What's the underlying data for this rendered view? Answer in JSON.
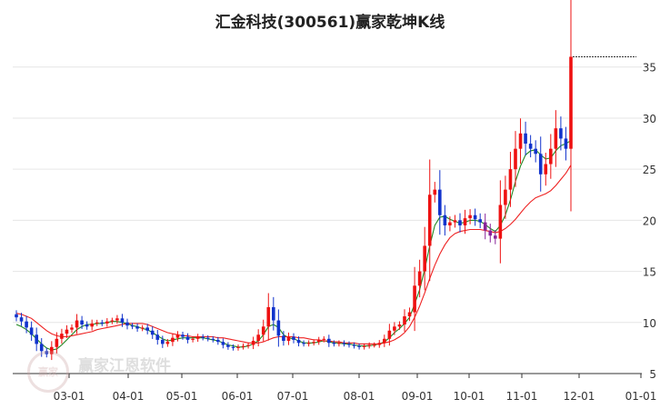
{
  "chart_data": {
    "type": "candlestick",
    "title": "汇金科技(300561)赢家乾坤K线",
    "ylim": [
      5,
      38
    ],
    "y_ticks": [
      35,
      30,
      25,
      20,
      15,
      10,
      5
    ],
    "x_ticks": [
      "03-01",
      "04-01",
      "05-01",
      "06-01",
      "07-01",
      "08-01",
      "09-01",
      "10-01",
      "11-01",
      "12-01",
      "01-01"
    ],
    "last_price_line": 36.0,
    "colors": {
      "up": "#ee1111",
      "down": "#1133cc",
      "special": "#882299",
      "short_ma": "#228822",
      "long_ma": "#ee2222",
      "grid": "#e6e6e6",
      "axis_text": "#333333"
    },
    "series": [
      {
        "type": "close",
        "values": [
          10.5,
          10.1,
          9.5,
          8.8,
          7.9,
          7.2,
          6.9,
          7.6,
          8.4,
          8.9,
          9.3,
          9.5,
          10.2,
          9.8,
          9.6,
          9.9,
          10.0,
          9.9,
          10.1,
          10.2,
          10.4,
          10.0,
          9.7,
          9.6,
          9.4,
          9.5,
          9.2,
          8.8,
          8.3,
          7.9,
          8.1,
          8.5,
          8.8,
          8.6,
          8.3,
          8.4,
          8.6,
          8.5,
          8.4,
          8.3,
          8.1,
          7.8,
          7.6,
          7.5,
          7.6,
          7.7,
          7.8,
          8.2,
          8.8,
          9.6,
          11.5,
          10.2,
          8.7,
          8.2,
          8.6,
          8.3,
          8.0,
          7.9,
          8.0,
          8.1,
          8.3,
          8.4,
          8.0,
          7.9,
          8.0,
          7.9,
          7.8,
          7.7,
          7.6,
          7.7,
          7.8,
          7.8,
          8.0,
          8.4,
          9.2,
          9.6,
          9.8,
          10.6,
          11.0,
          13.6,
          15.0,
          17.5,
          22.5,
          23.0,
          20.5,
          19.5,
          19.8,
          20.0,
          19.5,
          20.2,
          20.5,
          20.1,
          19.8,
          19.0,
          18.5,
          18.2,
          21.5,
          23.0,
          25.0,
          27.0,
          28.5,
          27.5,
          27.0,
          26.5,
          24.5,
          25.5,
          27.0,
          29.0,
          28.0,
          27.0,
          36.0
        ]
      },
      {
        "type": "short_ma",
        "name": "",
        "values": [
          9.8,
          9.6,
          9.3,
          8.9,
          8.4,
          7.9,
          7.5,
          7.3,
          7.4,
          7.8,
          8.3,
          8.8,
          9.3,
          9.6,
          9.8,
          9.8,
          9.9,
          9.9,
          10.0,
          10.1,
          10.1,
          10.0,
          9.9,
          9.7,
          9.6,
          9.4,
          9.3,
          9.0,
          8.7,
          8.4,
          8.2,
          8.3,
          8.4,
          8.5,
          8.5,
          8.5,
          8.5,
          8.5,
          8.4,
          8.3,
          8.2,
          8.0,
          7.8,
          7.7,
          7.6,
          7.6,
          7.7,
          7.9,
          8.2,
          8.8,
          9.6,
          9.8,
          9.5,
          8.8,
          8.5,
          8.4,
          8.2,
          8.0,
          8.0,
          8.0,
          8.1,
          8.2,
          8.1,
          8.0,
          8.0,
          7.9,
          7.9,
          7.8,
          7.7,
          7.7,
          7.7,
          7.8,
          7.9,
          8.1,
          8.5,
          9.0,
          9.4,
          9.9,
          10.5,
          11.8,
          13.2,
          15.2,
          17.5,
          19.5,
          20.3,
          20.4,
          20.1,
          19.9,
          19.7,
          19.8,
          20.0,
          20.0,
          19.9,
          19.6,
          19.2,
          18.9,
          19.5,
          20.5,
          22.0,
          23.8,
          25.3,
          26.4,
          26.8,
          26.9,
          26.4,
          26.0,
          26.1,
          26.8,
          27.3,
          27.5,
          27.8
        ]
      },
      {
        "type": "long_ma",
        "name": "",
        "values": [
          10.9,
          10.8,
          10.6,
          10.4,
          10.0,
          9.6,
          9.2,
          8.9,
          8.7,
          8.6,
          8.6,
          8.7,
          8.8,
          8.9,
          9.0,
          9.1,
          9.3,
          9.4,
          9.5,
          9.6,
          9.7,
          9.8,
          9.9,
          9.9,
          9.9,
          9.9,
          9.8,
          9.6,
          9.4,
          9.2,
          9.0,
          8.9,
          8.8,
          8.7,
          8.7,
          8.6,
          8.6,
          8.6,
          8.6,
          8.6,
          8.5,
          8.5,
          8.4,
          8.3,
          8.2,
          8.1,
          8.0,
          8.0,
          8.0,
          8.1,
          8.3,
          8.5,
          8.6,
          8.6,
          8.6,
          8.6,
          8.5,
          8.5,
          8.4,
          8.3,
          8.3,
          8.2,
          8.2,
          8.1,
          8.1,
          8.0,
          8.0,
          8.0,
          7.9,
          7.9,
          7.9,
          7.9,
          7.9,
          8.0,
          8.1,
          8.3,
          8.6,
          9.0,
          9.6,
          10.5,
          11.6,
          12.9,
          14.3,
          15.6,
          16.7,
          17.6,
          18.3,
          18.7,
          18.9,
          19.0,
          19.1,
          19.1,
          19.1,
          19.0,
          18.9,
          18.8,
          18.9,
          19.2,
          19.6,
          20.1,
          20.7,
          21.3,
          21.8,
          22.2,
          22.4,
          22.6,
          22.9,
          23.4,
          24.0,
          24.6,
          25.4
        ]
      }
    ]
  },
  "watermark": {
    "text": "赢家江恩软件",
    "seal_text": "赢家"
  }
}
